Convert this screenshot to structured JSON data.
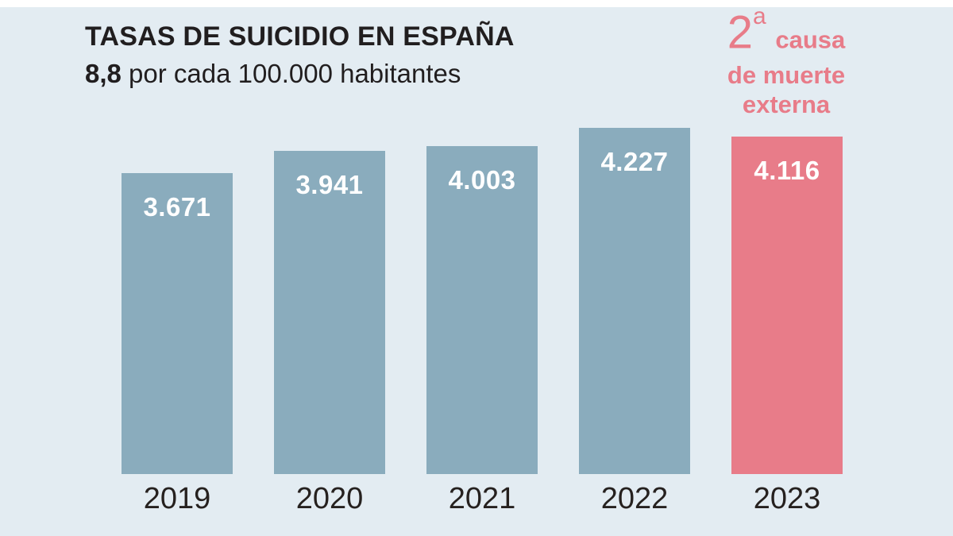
{
  "colors": {
    "background": "#e3ecf2",
    "top_strip": "#ffffff",
    "bar": "#8aacbd",
    "highlight": "#e87c89",
    "title_text": "#211e1f",
    "axis_label_text": "#26211f",
    "value_label_text": "#ffffff",
    "annotation_text": "#e87c89"
  },
  "header": {
    "title": "TASAS DE SUICIDIO EN ESPAÑA",
    "subtitle_value": "8,8",
    "subtitle_rest": " por cada 100.000 habitantes"
  },
  "annotation": {
    "number": "2",
    "ordinal": "a",
    "line1_rest": " causa",
    "line2": "de muerte",
    "line3": "externa",
    "full_text": "2ª causa de muerte externa"
  },
  "chart_data": {
    "type": "bar",
    "title": "TASAS DE SUICIDIO EN ESPAÑA",
    "subtitle": "8,8 por cada 100.000 habitantes",
    "categories": [
      "2019",
      "2020",
      "2021",
      "2022",
      "2023"
    ],
    "values": [
      3671,
      3941,
      4003,
      4227,
      4116
    ],
    "value_labels": [
      "3.671",
      "3.941",
      "4.003",
      "4.227",
      "4.116"
    ],
    "highlight_index": 4,
    "highlight_annotation": "2ª causa de muerte externa",
    "ylim": [
      0,
      4227
    ],
    "grid": false,
    "legend": false,
    "value_labels_position": "inside-top",
    "xlabel": "",
    "ylabel": ""
  }
}
